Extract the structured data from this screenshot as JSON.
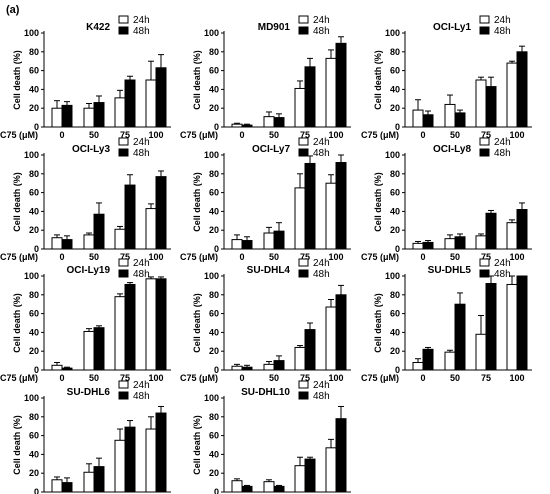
{
  "figure": {
    "panel_label": "(a)",
    "xaxis_prefix": "C75 (μM)",
    "colors": {
      "h24": "#ffffff",
      "h48": "#000000",
      "stroke": "#000000"
    }
  },
  "chart_data": [
    {
      "type": "bar",
      "title": "K422",
      "ylabel": "Cell death (%)",
      "ylim": [
        0,
        100
      ],
      "categories": [
        "0",
        "50",
        "75",
        "100"
      ],
      "series": [
        {
          "name": "24h",
          "values": [
            20,
            20,
            31,
            50
          ],
          "errors": [
            8,
            5,
            8,
            20
          ]
        },
        {
          "name": "48h",
          "values": [
            23,
            26,
            50,
            63
          ],
          "errors": [
            4,
            7,
            4,
            14
          ]
        }
      ]
    },
    {
      "type": "bar",
      "title": "MD901",
      "ylabel": "Cell death (%)",
      "ylim": [
        0,
        100
      ],
      "categories": [
        "0",
        "50",
        "75",
        "100"
      ],
      "series": [
        {
          "name": "24h",
          "values": [
            3,
            11,
            41,
            73
          ],
          "errors": [
            1,
            5,
            8,
            9
          ]
        },
        {
          "name": "48h",
          "values": [
            2,
            10,
            64,
            89
          ],
          "errors": [
            1,
            4,
            9,
            7
          ]
        }
      ]
    },
    {
      "type": "bar",
      "title": "OCI-Ly1",
      "ylabel": "Cell death (%)",
      "ylim": [
        0,
        100
      ],
      "categories": [
        "0",
        "50",
        "75",
        "100"
      ],
      "series": [
        {
          "name": "24h",
          "values": [
            18,
            24,
            50,
            68
          ],
          "errors": [
            11,
            10,
            3,
            2
          ]
        },
        {
          "name": "48h",
          "values": [
            13,
            15,
            43,
            80
          ],
          "errors": [
            4,
            3,
            10,
            6
          ]
        }
      ]
    },
    {
      "type": "bar",
      "title": "OCI-Ly3",
      "ylabel": "Cell death (%)",
      "ylim": [
        0,
        100
      ],
      "categories": [
        "0",
        "50",
        "75",
        "100"
      ],
      "series": [
        {
          "name": "24h",
          "values": [
            12,
            15,
            21,
            43
          ],
          "errors": [
            3,
            2,
            3,
            5
          ]
        },
        {
          "name": "48h",
          "values": [
            10,
            37,
            68,
            77
          ],
          "errors": [
            4,
            12,
            11,
            6
          ]
        }
      ]
    },
    {
      "type": "bar",
      "title": "OCI-Ly7",
      "ylabel": "Cell death (%)",
      "ylim": [
        0,
        100
      ],
      "categories": [
        "0",
        "50",
        "75",
        "100"
      ],
      "series": [
        {
          "name": "24h",
          "values": [
            10,
            17,
            65,
            70
          ],
          "errors": [
            5,
            6,
            15,
            9
          ]
        },
        {
          "name": "48h",
          "values": [
            9,
            19,
            91,
            92
          ],
          "errors": [
            4,
            9,
            8,
            10
          ]
        }
      ]
    },
    {
      "type": "bar",
      "title": "OCI-Ly8",
      "ylabel": "Cell death (%)",
      "ylim": [
        0,
        100
      ],
      "categories": [
        "0",
        "50",
        "75",
        "100"
      ],
      "series": [
        {
          "name": "24h",
          "values": [
            6,
            11,
            14,
            28
          ],
          "errors": [
            2,
            4,
            2,
            3
          ]
        },
        {
          "name": "48h",
          "values": [
            7,
            13,
            38,
            42
          ],
          "errors": [
            2,
            3,
            3,
            7
          ]
        }
      ]
    },
    {
      "type": "bar",
      "title": "OCI-Ly19",
      "ylabel": "Cell death (%)",
      "ylim": [
        0,
        100
      ],
      "categories": [
        "0",
        "50",
        "75",
        "100"
      ],
      "series": [
        {
          "name": "24h",
          "values": [
            5,
            41,
            78,
            97
          ],
          "errors": [
            3,
            3,
            3,
            2
          ]
        },
        {
          "name": "48h",
          "values": [
            2,
            45,
            91,
            97
          ],
          "errors": [
            1,
            2,
            2,
            2
          ]
        }
      ]
    },
    {
      "type": "bar",
      "title": "SU-DHL4",
      "ylabel": "Cell death (%)",
      "ylim": [
        0,
        100
      ],
      "categories": [
        "0",
        "50",
        "75",
        "100"
      ],
      "series": [
        {
          "name": "24h",
          "values": [
            4,
            6,
            24,
            67
          ],
          "errors": [
            2,
            3,
            2,
            8
          ]
        },
        {
          "name": "48h",
          "values": [
            3,
            10,
            43,
            80
          ],
          "errors": [
            2,
            5,
            7,
            10
          ]
        }
      ]
    },
    {
      "type": "bar",
      "title": "SU-DHL5",
      "ylabel": "Cell death (%)",
      "ylim": [
        0,
        100
      ],
      "categories": [
        "0",
        "50",
        "75",
        "100"
      ],
      "series": [
        {
          "name": "24h",
          "values": [
            8,
            19,
            38,
            91
          ],
          "errors": [
            4,
            2,
            20,
            10
          ]
        },
        {
          "name": "48h",
          "values": [
            22,
            70,
            92,
            100
          ],
          "errors": [
            2,
            12,
            8,
            2
          ]
        }
      ]
    },
    {
      "type": "bar",
      "title": "SU-DHL6",
      "ylabel": "Cell death (%)",
      "ylim": [
        0,
        100
      ],
      "categories": [
        "0",
        "50",
        "75",
        "100"
      ],
      "series": [
        {
          "name": "24h",
          "values": [
            13,
            21,
            55,
            67
          ],
          "errors": [
            3,
            9,
            12,
            13
          ]
        },
        {
          "name": "48h",
          "values": [
            10,
            27,
            69,
            84
          ],
          "errors": [
            5,
            9,
            7,
            7
          ]
        }
      ]
    },
    {
      "type": "bar",
      "title": "SU-DHL10",
      "ylabel": "Cell death (%)",
      "ylim": [
        0,
        100
      ],
      "categories": [
        "0",
        "50",
        "75",
        "100"
      ],
      "series": [
        {
          "name": "24h",
          "values": [
            12,
            11,
            28,
            47
          ],
          "errors": [
            2,
            2,
            9,
            9
          ]
        },
        {
          "name": "48h",
          "values": [
            6,
            6,
            35,
            78
          ],
          "errors": [
            1,
            1,
            2,
            13
          ]
        }
      ]
    }
  ]
}
